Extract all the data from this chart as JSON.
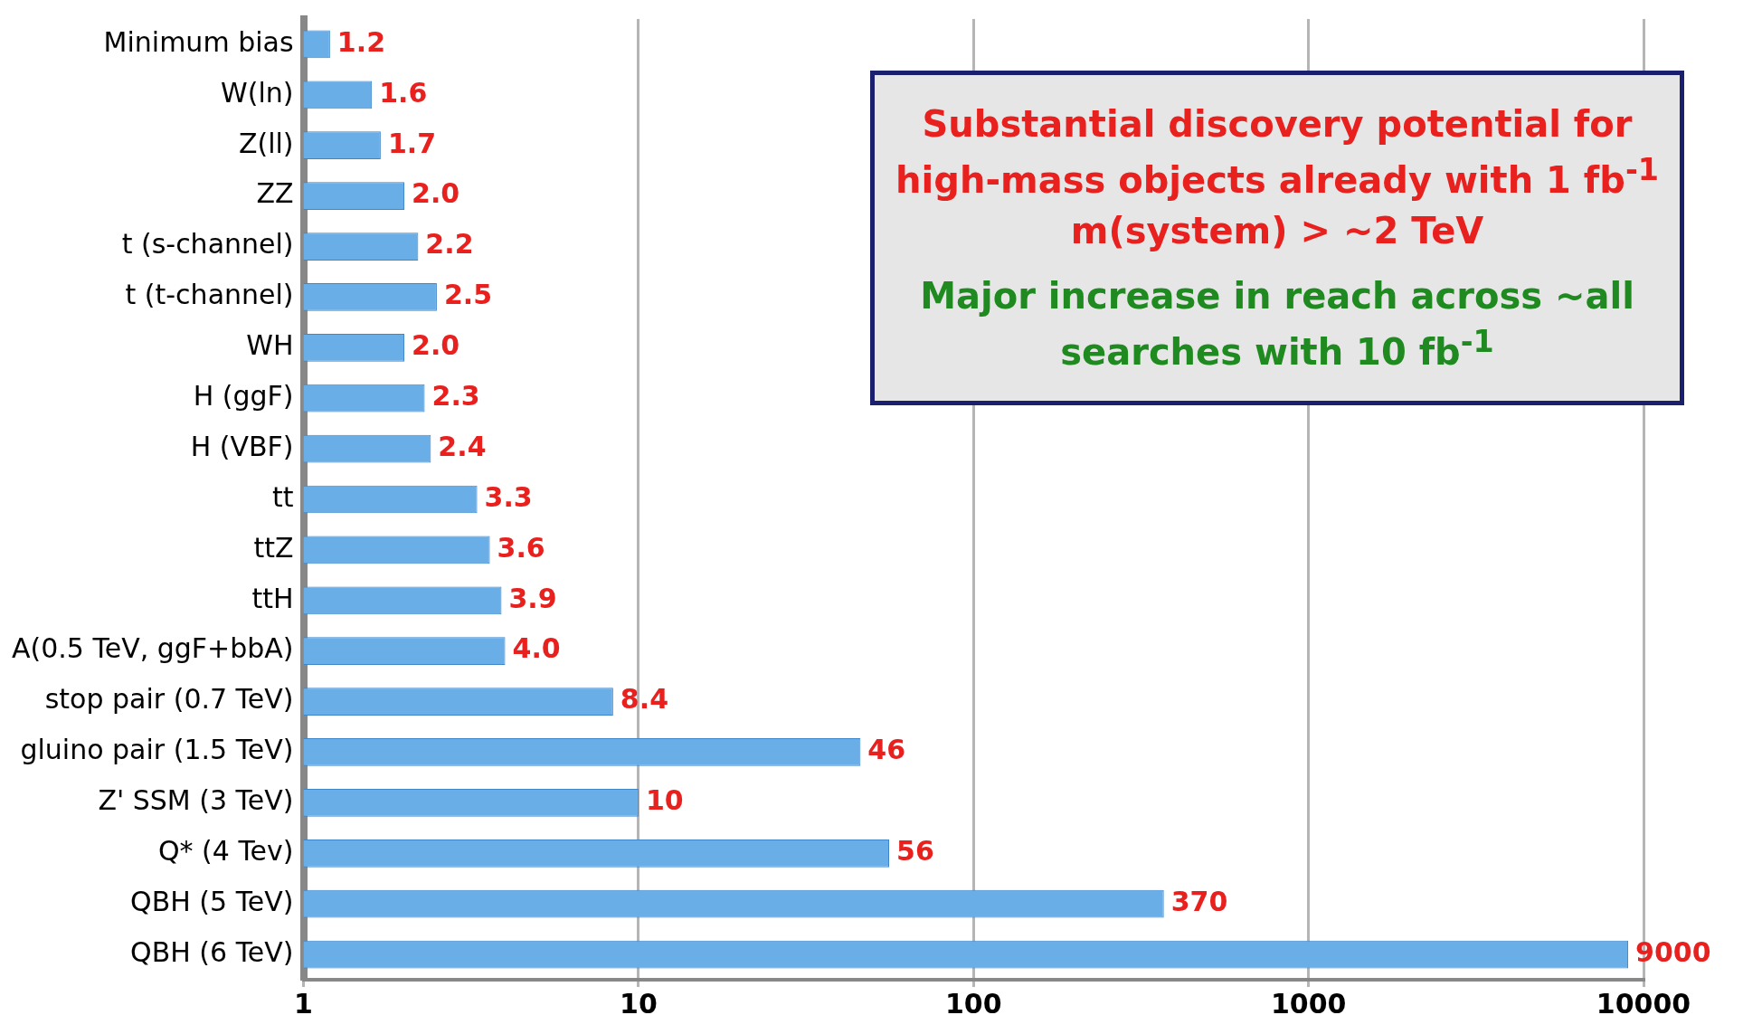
{
  "chart_data": {
    "type": "bar",
    "orientation": "horizontal",
    "log": "x",
    "categories": [
      "Minimum bias",
      "W(ln)",
      "Z(ll)",
      "ZZ",
      "t (s-channel)",
      "t (t-channel)",
      "WH",
      "H (ggF)",
      "H (VBF)",
      "tt",
      "ttZ",
      "ttH",
      "A(0.5 TeV, ggF+bbA)",
      "stop pair (0.7 TeV)",
      "gluino pair (1.5 TeV)",
      "Z' SSM (3 TeV)",
      "Q* (4 Tev)",
      "QBH (5 TeV)",
      "QBH (6 TeV)"
    ],
    "values": [
      1.2,
      1.6,
      1.7,
      2.0,
      2.2,
      2.5,
      2.0,
      2.3,
      2.4,
      3.3,
      3.6,
      3.9,
      4.0,
      8.4,
      46,
      10,
      56,
      370,
      9000
    ],
    "value_labels": [
      "1.2",
      "1.6",
      "1.7",
      "2.0",
      "2.2",
      "2.5",
      "2.0",
      "2.3",
      "2.4",
      "3.3",
      "3.6",
      "3.9",
      "4.0",
      "8.4",
      "46",
      "10",
      "56",
      "370",
      "9000"
    ],
    "color": "#6aaee8",
    "xlim": [
      1,
      10000
    ],
    "xticks": [
      1,
      10,
      100,
      1000,
      10000
    ],
    "grid": "x",
    "legend": false,
    "annotations": [
      "Substantial discovery potential for high-mass objects already with 1 fb$^{-1}$ m(system) > ~2 TeV",
      "Major increase in reach across ~all searches with 10 fb$^{-1}$"
    ]
  }
}
